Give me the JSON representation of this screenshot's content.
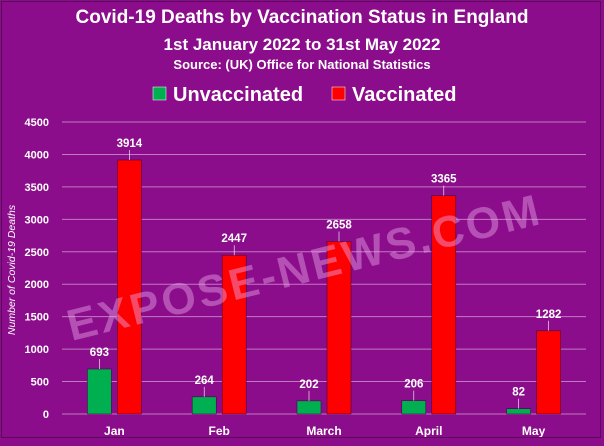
{
  "colors": {
    "background": "#8b0d8b",
    "unvaccinated": "#00b050",
    "vaccinated": "#ff0000",
    "text": "#ffffff",
    "grid": "#c07ac0",
    "watermark": "#e8a3e8"
  },
  "header": {
    "title": "Covid-19 Deaths by Vaccination Status in England",
    "subtitle": "1st January 2022 to 31st May 2022",
    "source": "Source:  (UK) Office for National Statistics"
  },
  "watermark": "EXPOSE-NEWS.COM",
  "chart_data": {
    "type": "bar",
    "categories": [
      "Jan",
      "Feb",
      "March",
      "April",
      "May"
    ],
    "series": [
      {
        "name": "Unvaccinated",
        "color": "#00b050",
        "values": [
          693,
          264,
          202,
          206,
          82
        ]
      },
      {
        "name": "Vaccinated",
        "color": "#ff0000",
        "values": [
          3914,
          2447,
          2658,
          3365,
          1282
        ]
      }
    ],
    "ylabel": "Number of Covid-19 Deaths",
    "xlabel": "",
    "ylim": [
      0,
      4500
    ],
    "yticks": [
      0,
      500,
      1000,
      1500,
      2000,
      2500,
      3000,
      3500,
      4000,
      4500
    ],
    "grid": true,
    "legend_position": "top"
  }
}
